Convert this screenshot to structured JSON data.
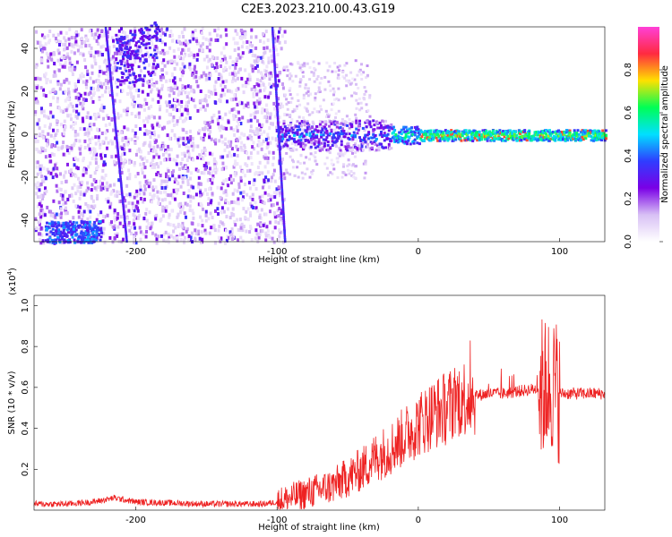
{
  "title": "C2E3.2023.210.00.43.G19",
  "chart_data": [
    {
      "type": "heatmap",
      "xlabel": "Height of straight line (km)",
      "ylabel": "Frequency (Hz)",
      "xlim": [
        -272,
        132
      ],
      "ylim": [
        -50,
        50
      ],
      "xticks": [
        -200,
        -100,
        0,
        100
      ],
      "yticks": [
        -40,
        -20,
        0,
        20,
        40
      ],
      "colorbar": {
        "label": "Normalized spectral amplitude",
        "range": [
          0.0,
          1.0
        ],
        "ticks": [
          "0.0",
          "0.2",
          "0.4",
          "0.6",
          "0.8"
        ],
        "colormap": [
          "#ffffff",
          "#d8c0f5",
          "#7a00e6",
          "#2f3dff",
          "#00e0ff",
          "#00ff55",
          "#ffe000",
          "#ff2a40",
          "#ff40d8"
        ]
      },
      "features": [
        {
          "name": "main-line-near-0Hz",
          "x_range": [
            -100,
            132
          ],
          "freq": 0,
          "peak_amplitude": 0.9
        },
        {
          "name": "steep-streak-1",
          "x_range": [
            -222,
            -207
          ],
          "freq_range": [
            50,
            -50
          ]
        },
        {
          "name": "steep-streak-2",
          "x_range": [
            -104,
            -95
          ],
          "freq_range": [
            50,
            -50
          ]
        },
        {
          "name": "cluster-lower-left",
          "x": [
            -265,
            -225
          ],
          "freq": [
            -50,
            -40
          ]
        },
        {
          "name": "cluster-upper",
          "x": [
            -215,
            -185
          ],
          "freq": [
            50,
            25
          ]
        }
      ]
    },
    {
      "type": "line",
      "xlabel": "Height of straight line (km)",
      "ylabel": "SNR (10 * v/v)",
      "yscale_note": "(x10",
      "yscale_exp": "4",
      "color": "#ee2222",
      "xlim": [
        -272,
        132
      ],
      "ylim": [
        0,
        1.05
      ],
      "xticks": [
        -200,
        -100,
        0,
        100
      ],
      "yticks": [
        0.2,
        0.4,
        0.6,
        0.8,
        1.0
      ],
      "series": [
        {
          "x": [
            -272,
            -250,
            -230,
            -215,
            -200,
            -150,
            -110,
            -100,
            -90,
            -80,
            -70,
            -60,
            -50,
            -40,
            -30,
            -20,
            -10,
            0,
            10,
            20,
            30,
            40,
            50,
            60,
            70,
            80,
            90,
            95,
            100,
            110,
            120,
            132
          ],
          "y": [
            0.03,
            0.03,
            0.04,
            0.06,
            0.04,
            0.03,
            0.03,
            0.04,
            0.06,
            0.08,
            0.1,
            0.12,
            0.16,
            0.2,
            0.26,
            0.3,
            0.36,
            0.42,
            0.47,
            0.5,
            0.55,
            0.56,
            0.57,
            0.57,
            0.58,
            0.59,
            0.6,
            0.62,
            0.57,
            0.57,
            0.57,
            0.57
          ]
        }
      ]
    }
  ]
}
